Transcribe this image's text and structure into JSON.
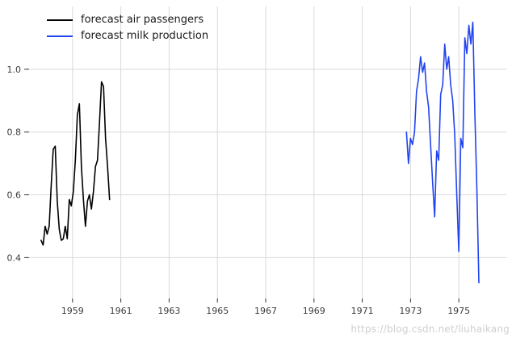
{
  "chart_data": {
    "type": "line",
    "title": "",
    "xlabel": "",
    "ylabel": "",
    "grid": true,
    "legend_position": "upper left",
    "xlim": [
      1957.2,
      1977.0
    ],
    "ylim": [
      0.27,
      1.2
    ],
    "x_ticks": [
      1959,
      1961,
      1963,
      1965,
      1967,
      1969,
      1971,
      1973,
      1975
    ],
    "y_ticks": [
      0.4,
      0.6,
      0.8,
      1.0
    ],
    "series": [
      {
        "name": "forecast air passengers",
        "color": "#000000",
        "x_start": 1957.7,
        "x_step": 0.083333,
        "values": [
          0.455,
          0.44,
          0.5,
          0.475,
          0.5,
          0.63,
          0.745,
          0.755,
          0.58,
          0.49,
          0.455,
          0.46,
          0.5,
          0.46,
          0.585,
          0.565,
          0.61,
          0.71,
          0.855,
          0.89,
          0.69,
          0.585,
          0.5,
          0.58,
          0.6,
          0.555,
          0.61,
          0.69,
          0.71,
          0.83,
          0.96,
          0.945,
          0.78,
          0.69,
          0.585
        ]
      },
      {
        "name": "forecast milk production",
        "color": "#2244ee",
        "x_start": 1972.83,
        "x_step": 0.083333,
        "values": [
          0.8,
          0.7,
          0.78,
          0.76,
          0.8,
          0.93,
          0.97,
          1.04,
          0.99,
          1.02,
          0.93,
          0.88,
          0.76,
          0.64,
          0.53,
          0.74,
          0.71,
          0.92,
          0.95,
          1.08,
          1.0,
          1.04,
          0.95,
          0.9,
          0.79,
          0.6,
          0.42,
          0.78,
          0.75,
          1.1,
          1.05,
          1.14,
          1.08,
          1.15,
          0.86,
          0.62,
          0.32
        ]
      }
    ]
  },
  "watermark": {
    "text": "https://blog.csdn.net/liuhaikang"
  },
  "colors": {
    "background": "#ffffff",
    "grid": "#d9d9d9",
    "tick": "#333333",
    "tick_label": "#3b3b3b",
    "watermark": "#cfcfcf"
  }
}
